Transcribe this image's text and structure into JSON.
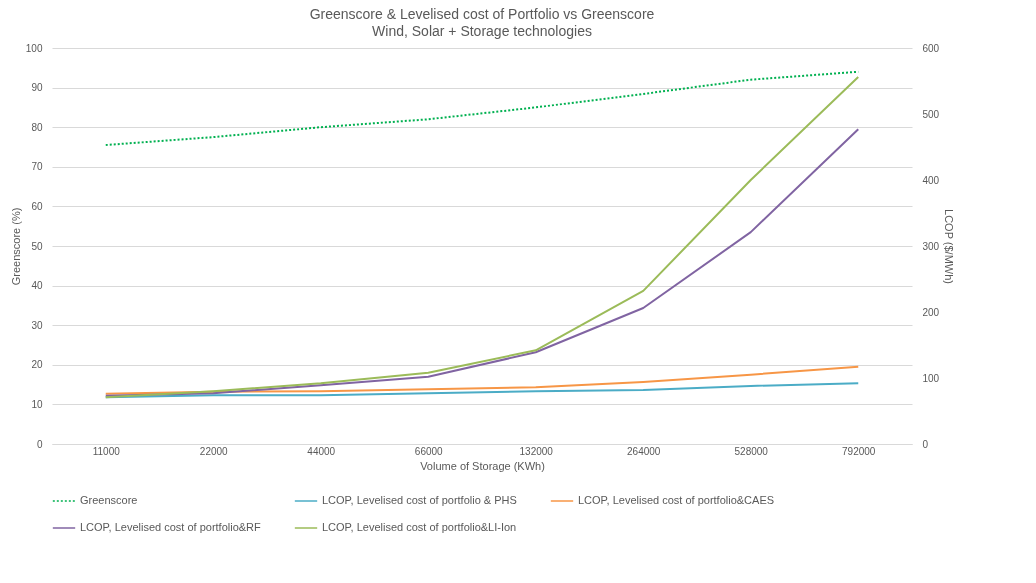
{
  "chart_data": {
    "type": "line",
    "title": "Greenscore & Levelised cost of Portfolio vs Greenscore",
    "subtitle": "Wind, Solar + Storage technologies",
    "xlabel": "Volume of Storage (KWh)",
    "ylabel": "Greenscore (%)",
    "y2label": "LCOP ($/MWh)",
    "categories": [
      "11000",
      "22000",
      "44000",
      "66000",
      "132000",
      "264000",
      "528000",
      "792000"
    ],
    "series": [
      {
        "name": "Greenscore",
        "color": "#00b050",
        "line_style": "dotted",
        "values": [
          75.5,
          77.5,
          80,
          82,
          85,
          88.4,
          92,
          94
        ]
      },
      {
        "name": "LCOP, Levelised cost of portfolio & PHS",
        "color": "#4bacc6",
        "axis": "y2",
        "values": [
          71,
          74,
          74,
          77,
          80,
          82,
          88,
          92
        ]
      },
      {
        "name": "LCOP, Levelised cost of portfolio&CAES",
        "color": "#f79646",
        "axis": "y2",
        "values": [
          76,
          79,
          80,
          83,
          86,
          94,
          105,
          117
        ]
      },
      {
        "name": "LCOP, Levelised cost of portfolio&RF",
        "color": "#8064a2",
        "axis": "y2",
        "values": [
          73,
          77,
          89,
          102,
          139,
          206,
          321,
          477
        ]
      },
      {
        "name": "LCOP, Levelised cost of portfolio&LI-Ion",
        "color": "#9bbb59",
        "axis": "y2",
        "values": [
          71,
          80,
          92,
          108,
          142,
          232,
          400,
          556
        ]
      }
    ],
    "ylim": [
      0,
      100
    ],
    "yticks": [
      0,
      10,
      20,
      30,
      40,
      50,
      60,
      70,
      80,
      90,
      100
    ],
    "y2lim": [
      0,
      600
    ],
    "y2ticks": [
      0,
      100,
      200,
      300,
      400,
      500,
      600
    ],
    "grid": "y",
    "legend": "bottom",
    "line_style": "solid",
    "marker": "none"
  }
}
